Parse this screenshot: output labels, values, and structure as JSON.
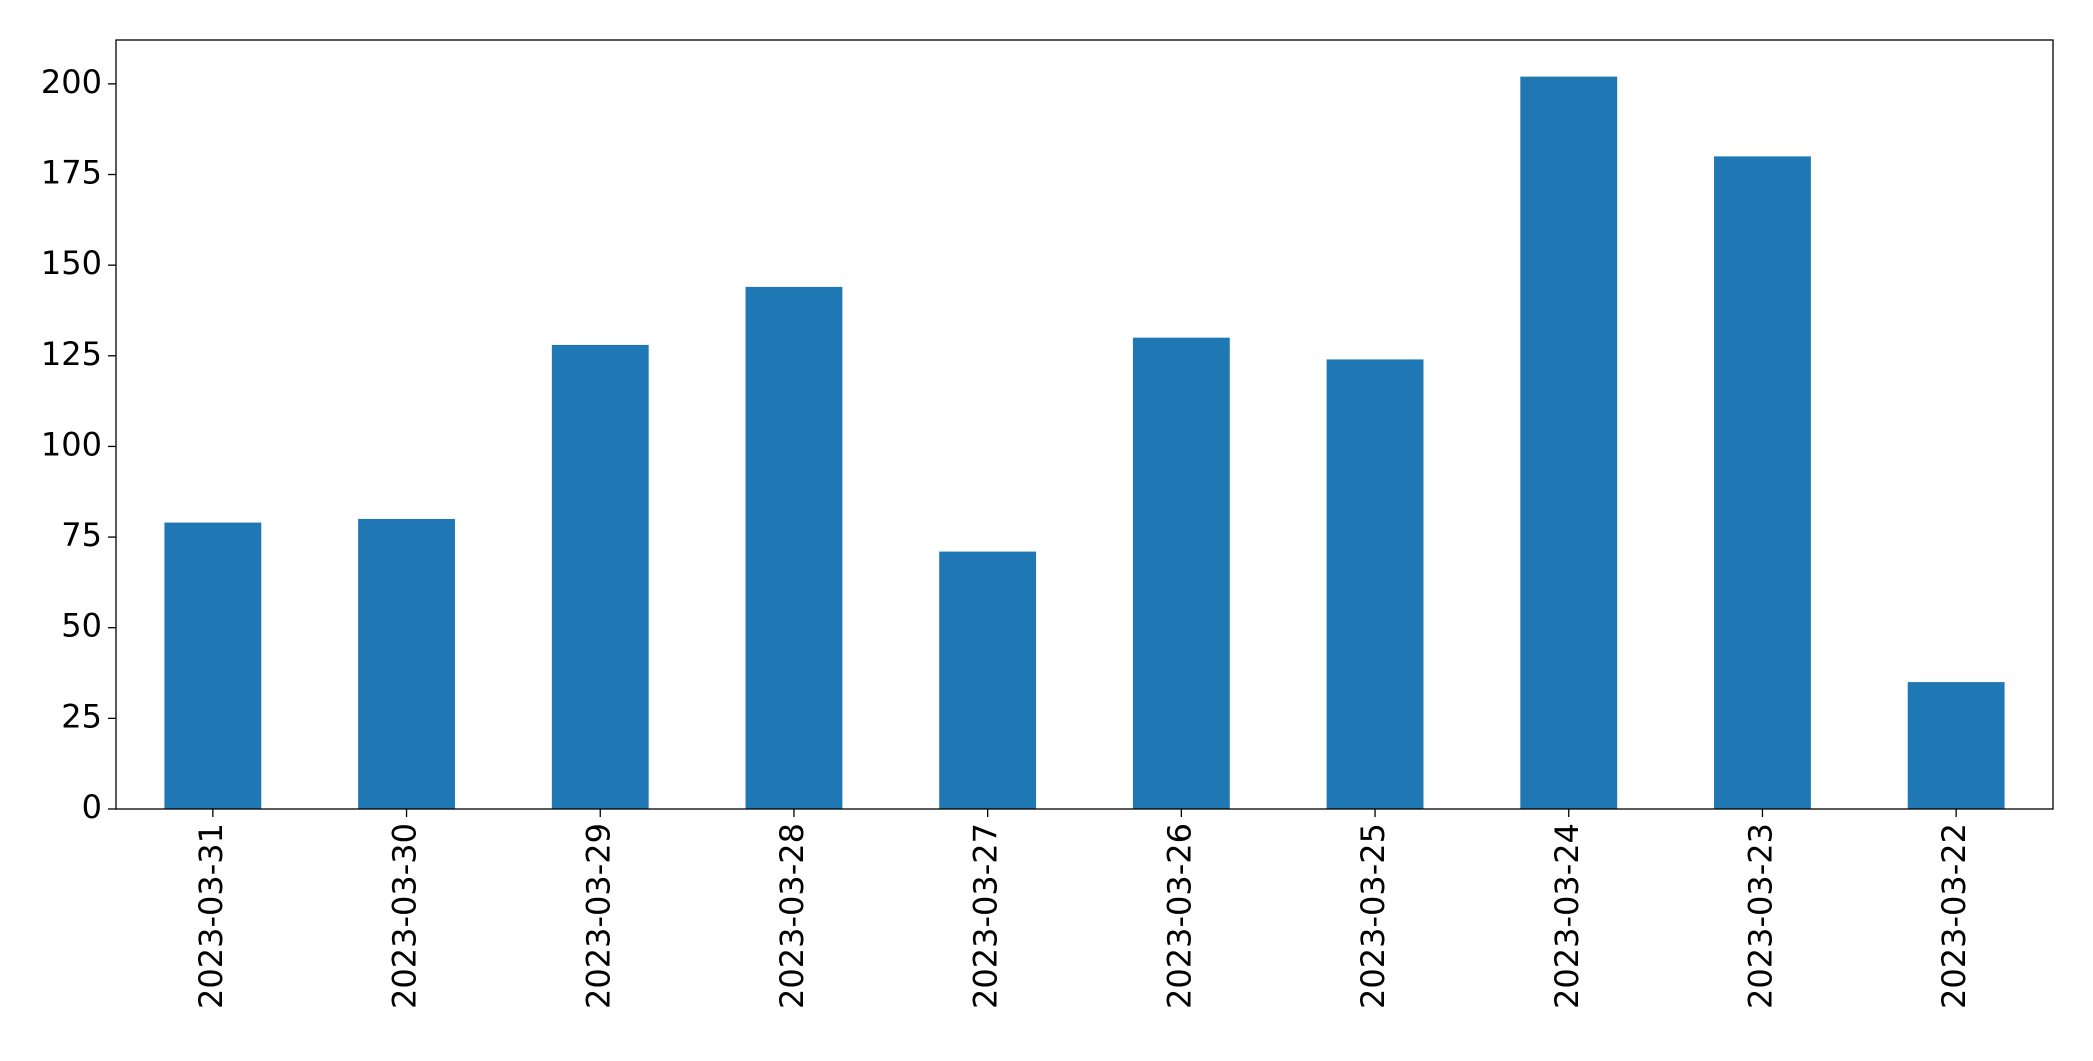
{
  "chart_data": {
    "type": "bar",
    "categories": [
      "2023-03-31",
      "2023-03-30",
      "2023-03-29",
      "2023-03-28",
      "2023-03-27",
      "2023-03-26",
      "2023-03-25",
      "2023-03-24",
      "2023-03-23",
      "2023-03-22"
    ],
    "values": [
      79,
      80,
      128,
      144,
      71,
      130,
      124,
      202,
      180,
      35
    ],
    "color": "#1f77b4",
    "ylim": [
      0,
      212.1
    ],
    "yticks": [
      0,
      25,
      50,
      75,
      100,
      125,
      150,
      175,
      200
    ],
    "grid": false
  }
}
